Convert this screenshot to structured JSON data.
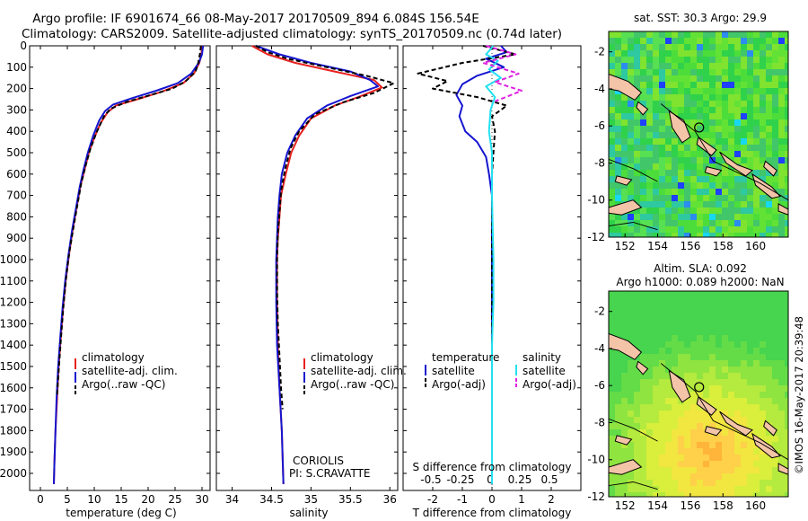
{
  "titles": {
    "line1": "Argo profile: IF 6901674_66 08-May-2017 20170509_894 6.084S 156.54E",
    "line2": "Climatology: CARS2009. Satellite-adjusted climatology: synTS_20170509.nc (0.74d later)"
  },
  "credit": "©IMOS 16-May-2017 20:39:48",
  "colors": {
    "climatology": "#e8211f",
    "satellite": "#1515d0",
    "argo": "#000000",
    "satellite_s": "#22e0f0",
    "argo_s": "#e020e0"
  },
  "chart_data": [
    {
      "type": "line",
      "id": "temperature",
      "xlabel": "temperature (deg C)",
      "ylabel": "",
      "xlim": [
        -2,
        31.5
      ],
      "ylim": [
        0,
        2080
      ],
      "xticks": [
        0,
        5,
        10,
        15,
        20,
        25,
        30
      ],
      "yticks": [
        0,
        100,
        200,
        300,
        400,
        500,
        600,
        700,
        800,
        900,
        1000,
        1100,
        1200,
        1300,
        1400,
        1500,
        1600,
        1700,
        1800,
        1900,
        2000
      ],
      "legend": {
        "position": "lower-middle",
        "entries": [
          "climatology",
          "satellite-adj. clim.",
          "Argo(..raw -QC)"
        ]
      },
      "series": [
        {
          "name": "climatology",
          "color": "#e8211f",
          "dash": "",
          "points": [
            [
              30.0,
              0
            ],
            [
              29.9,
              40
            ],
            [
              29.5,
              80
            ],
            [
              28.5,
              130
            ],
            [
              26.5,
              175
            ],
            [
              22.5,
              215
            ],
            [
              18.0,
              250
            ],
            [
              14.0,
              280
            ],
            [
              12.5,
              310
            ],
            [
              11.2,
              360
            ],
            [
              10.0,
              430
            ],
            [
              9.0,
              500
            ],
            [
              8.2,
              580
            ],
            [
              7.4,
              660
            ],
            [
              6.7,
              760
            ],
            [
              6.0,
              860
            ],
            [
              5.3,
              980
            ],
            [
              4.7,
              1100
            ],
            [
              4.2,
              1230
            ],
            [
              3.8,
              1360
            ],
            [
              3.4,
              1500
            ],
            [
              3.1,
              1650
            ],
            [
              2.8,
              1800
            ],
            [
              2.6,
              1950
            ],
            [
              2.5,
              2050
            ]
          ]
        },
        {
          "name": "satellite-adj. clim.",
          "color": "#1515d0",
          "dash": "",
          "points": [
            [
              30.2,
              0
            ],
            [
              30.0,
              40
            ],
            [
              29.4,
              80
            ],
            [
              28.0,
              130
            ],
            [
              25.5,
              175
            ],
            [
              21.5,
              210
            ],
            [
              17.0,
              245
            ],
            [
              13.5,
              275
            ],
            [
              12.0,
              305
            ],
            [
              10.9,
              350
            ],
            [
              9.8,
              420
            ],
            [
              8.8,
              500
            ],
            [
              8.0,
              580
            ],
            [
              7.3,
              660
            ],
            [
              6.6,
              760
            ],
            [
              5.9,
              860
            ],
            [
              5.2,
              980
            ],
            [
              4.6,
              1100
            ],
            [
              4.1,
              1230
            ],
            [
              3.7,
              1360
            ],
            [
              3.3,
              1500
            ],
            [
              3.0,
              1650
            ],
            [
              2.8,
              1800
            ],
            [
              2.6,
              1950
            ],
            [
              2.5,
              2050
            ]
          ]
        },
        {
          "name": "Argo(..raw -QC)",
          "color": "#000000",
          "dash": "5,3",
          "points": [
            [
              29.8,
              0
            ],
            [
              29.6,
              40
            ],
            [
              29.3,
              80
            ],
            [
              28.8,
              120
            ],
            [
              27.0,
              165
            ],
            [
              24.5,
              200
            ],
            [
              20.5,
              230
            ],
            [
              16.0,
              262
            ],
            [
              13.0,
              295
            ],
            [
              11.8,
              330
            ],
            [
              10.5,
              400
            ],
            [
              9.3,
              480
            ],
            [
              8.4,
              560
            ],
            [
              7.6,
              640
            ],
            [
              6.9,
              740
            ],
            [
              6.2,
              840
            ],
            [
              5.4,
              960
            ],
            [
              4.8,
              1080
            ],
            [
              4.3,
              1210
            ],
            [
              3.9,
              1340
            ],
            [
              3.5,
              1480
            ],
            [
              3.1,
              1630
            ]
          ]
        }
      ]
    },
    {
      "type": "line",
      "id": "salinity",
      "xlabel": "salinity",
      "ylabel": "",
      "xlim": [
        33.8,
        36.1
      ],
      "ylim": [
        0,
        2080
      ],
      "xticks": [
        34,
        34.5,
        35,
        35.5,
        36
      ],
      "legend": {
        "position": "lower-middle",
        "entries": [
          "climatology",
          "satellite-adj. clim.",
          "Argo(..raw -QC)"
        ]
      },
      "annotations": [
        "CORIOLIS",
        "PI: S.CRAVATTE"
      ],
      "series": [
        {
          "name": "climatology",
          "color": "#e8211f",
          "dash": "",
          "points": [
            [
              34.25,
              0
            ],
            [
              34.45,
              40
            ],
            [
              34.8,
              80
            ],
            [
              35.3,
              120
            ],
            [
              35.8,
              160
            ],
            [
              35.9,
              195
            ],
            [
              35.6,
              240
            ],
            [
              35.3,
              280
            ],
            [
              35.0,
              340
            ],
            [
              34.85,
              420
            ],
            [
              34.75,
              500
            ],
            [
              34.68,
              600
            ],
            [
              34.62,
              700
            ],
            [
              34.6,
              800
            ],
            [
              34.58,
              900
            ],
            [
              34.57,
              1000
            ],
            [
              34.57,
              1200
            ],
            [
              34.58,
              1400
            ],
            [
              34.6,
              1600
            ],
            [
              34.63,
              1800
            ],
            [
              34.65,
              2050
            ]
          ]
        },
        {
          "name": "satellite-adj. clim.",
          "color": "#1515d0",
          "dash": "",
          "points": [
            [
              34.3,
              0
            ],
            [
              34.6,
              40
            ],
            [
              35.0,
              80
            ],
            [
              35.5,
              120
            ],
            [
              35.75,
              160
            ],
            [
              35.85,
              190
            ],
            [
              35.5,
              235
            ],
            [
              35.2,
              280
            ],
            [
              34.95,
              340
            ],
            [
              34.8,
              420
            ],
            [
              34.7,
              500
            ],
            [
              34.63,
              600
            ],
            [
              34.6,
              700
            ],
            [
              34.58,
              800
            ],
            [
              34.57,
              900
            ],
            [
              34.56,
              1000
            ],
            [
              34.56,
              1200
            ],
            [
              34.57,
              1400
            ],
            [
              34.6,
              1600
            ],
            [
              34.63,
              1800
            ],
            [
              34.65,
              2050
            ]
          ]
        },
        {
          "name": "Argo(..raw -QC)",
          "color": "#000000",
          "dash": "5,3",
          "points": [
            [
              34.3,
              0
            ],
            [
              34.45,
              30
            ],
            [
              34.7,
              60
            ],
            [
              35.2,
              100
            ],
            [
              35.7,
              140
            ],
            [
              36.05,
              175
            ],
            [
              35.8,
              220
            ],
            [
              35.4,
              265
            ],
            [
              35.05,
              320
            ],
            [
              34.85,
              400
            ],
            [
              34.74,
              480
            ],
            [
              34.67,
              580
            ],
            [
              34.62,
              680
            ],
            [
              34.6,
              780
            ],
            [
              34.58,
              880
            ],
            [
              34.57,
              1000
            ],
            [
              34.57,
              1150
            ],
            [
              34.58,
              1300
            ],
            [
              34.6,
              1450
            ],
            [
              34.62,
              1600
            ],
            [
              34.64,
              1700
            ]
          ]
        }
      ]
    },
    {
      "type": "line",
      "id": "difference",
      "xlabel": "T difference from climatology",
      "x2label": "S difference from climatology",
      "xlim": [
        -3,
        3
      ],
      "ylim": [
        0,
        2080
      ],
      "xticks": [
        -2,
        -1,
        0,
        1,
        2
      ],
      "x2ticks": [
        -0.5,
        -0.25,
        0,
        0.25,
        0.5
      ],
      "x2tick_labels": [
        "-0.5",
        "-0.25",
        "0",
        "0.25",
        "0.5"
      ],
      "legend_temperature": {
        "title": "temperature",
        "entries": [
          "satellite",
          "Argo(-adj)"
        ]
      },
      "legend_salinity": {
        "title": "salinity",
        "entries": [
          "satellite",
          "Argo(-adj)"
        ]
      },
      "series": [
        {
          "name": "temperature satellite",
          "color": "#1515d0",
          "dash": "",
          "points": [
            [
              0.3,
              0
            ],
            [
              0.5,
              30
            ],
            [
              -0.2,
              60
            ],
            [
              0.4,
              100
            ],
            [
              -0.5,
              140
            ],
            [
              -1.0,
              180
            ],
            [
              -1.2,
              230
            ],
            [
              -1.0,
              280
            ],
            [
              -1.1,
              330
            ],
            [
              -0.9,
              400
            ],
            [
              -0.5,
              450
            ],
            [
              -0.2,
              520
            ],
            [
              -0.1,
              600
            ],
            [
              0.0,
              700
            ],
            [
              0.0,
              800
            ],
            [
              0.0,
              1000
            ],
            [
              0.0,
              1500
            ],
            [
              0.0,
              2000
            ],
            [
              0.0,
              2050
            ]
          ]
        },
        {
          "name": "temperature Argo(-adj)",
          "color": "#000000",
          "dash": "5,3",
          "points": [
            [
              -0.3,
              0
            ],
            [
              0.8,
              40
            ],
            [
              -1.0,
              80
            ],
            [
              -2.5,
              130
            ],
            [
              -1.5,
              165
            ],
            [
              -2.0,
              200
            ],
            [
              -0.5,
              240
            ],
            [
              0.5,
              280
            ],
            [
              0.0,
              330
            ],
            [
              0.1,
              400
            ],
            [
              0.05,
              500
            ],
            [
              0.0,
              600
            ],
            [
              0.0,
              800
            ],
            [
              0.0,
              1000
            ],
            [
              0.0,
              1150
            ],
            [
              0.0,
              1300
            ],
            [
              0.0,
              1450
            ]
          ]
        },
        {
          "name": "salinity satellite",
          "color": "#22e0f0",
          "dash": "",
          "points": [
            [
              0.05,
              0
            ],
            [
              -0.2,
              40
            ],
            [
              0.2,
              70
            ],
            [
              -0.1,
              110
            ],
            [
              0.3,
              150
            ],
            [
              -0.2,
              190
            ],
            [
              0.1,
              240
            ],
            [
              -0.05,
              300
            ],
            [
              -0.1,
              400
            ],
            [
              0.0,
              500
            ],
            [
              0.0,
              700
            ],
            [
              0.05,
              1000
            ],
            [
              0.05,
              1200
            ],
            [
              0.0,
              1400
            ],
            [
              0.0,
              1800
            ],
            [
              0.0,
              2050
            ]
          ]
        },
        {
          "name": "salinity Argo(-adj)",
          "color": "#e020e0",
          "dash": "5,3",
          "points": [
            [
              -0.2,
              0
            ],
            [
              0.8,
              40
            ],
            [
              -0.3,
              80
            ],
            [
              0.9,
              130
            ],
            [
              0.1,
              170
            ],
            [
              1.0,
              210
            ],
            [
              0.1,
              260
            ]
          ]
        }
      ]
    },
    {
      "type": "heatmap",
      "id": "sst-map",
      "title": "sat. SST: 30.3  Argo: 29.9",
      "xlim": [
        151,
        162
      ],
      "ylim": [
        -12,
        -0.9
      ],
      "xticks": [
        152,
        154,
        156,
        158,
        160
      ],
      "yticks": [
        -2,
        -4,
        -6,
        -8,
        -10,
        -12
      ],
      "marker": {
        "lon": 156.54,
        "lat": -6.084
      }
    },
    {
      "type": "heatmap",
      "id": "sla-map",
      "title": "Altim. SLA: 0.092",
      "subtitle": "Argo h1000: 0.089 h2000: NaN",
      "xlim": [
        151,
        162
      ],
      "ylim": [
        -12,
        -0.9
      ],
      "xticks": [
        152,
        154,
        156,
        158,
        160
      ],
      "yticks": [
        -2,
        -4,
        -6,
        -8,
        -10,
        -12
      ],
      "marker": {
        "lon": 156.54,
        "lat": -6.084
      }
    }
  ]
}
